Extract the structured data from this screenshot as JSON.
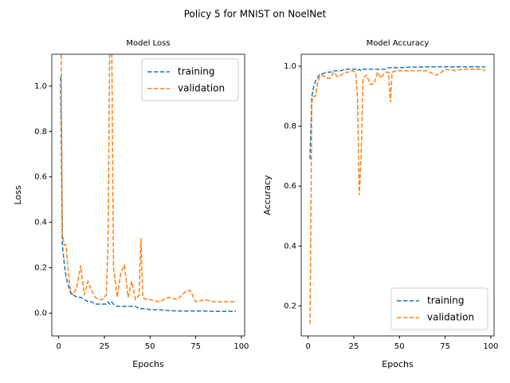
{
  "title": "Policy 5 for MNIST on NoelNet",
  "chart_data": [
    {
      "type": "line",
      "title": "Model Loss",
      "xlabel": "Epochs",
      "ylabel": "Loss",
      "x": [
        1,
        2,
        3,
        4,
        5,
        6,
        7,
        8,
        10,
        12,
        14,
        16,
        18,
        20,
        22,
        24,
        26,
        27,
        28,
        29,
        30,
        32,
        34,
        36,
        38,
        40,
        42,
        44,
        45,
        46,
        48,
        50,
        55,
        60,
        65,
        70,
        72,
        75,
        80,
        85,
        90,
        95,
        97
      ],
      "series": [
        {
          "name": "training",
          "color": "#1f77b4",
          "values": [
            1.04,
            0.3,
            0.22,
            0.16,
            0.13,
            0.1,
            0.08,
            0.08,
            0.07,
            0.07,
            0.06,
            0.05,
            0.05,
            0.04,
            0.04,
            0.04,
            0.04,
            0.05,
            0.04,
            0.05,
            0.04,
            0.03,
            0.03,
            0.03,
            0.03,
            0.03,
            0.03,
            0.02,
            0.02,
            0.02,
            0.02,
            0.015,
            0.015,
            0.012,
            0.01,
            0.01,
            0.01,
            0.01,
            0.01,
            0.008,
            0.008,
            0.008,
            0.008
          ]
        },
        {
          "name": "validation",
          "color": "#ff7f0e",
          "values": [
            1.5,
            0.35,
            0.3,
            0.3,
            0.2,
            0.12,
            0.09,
            0.08,
            0.12,
            0.21,
            0.08,
            0.14,
            0.1,
            0.07,
            0.06,
            0.06,
            0.08,
            0.3,
            1.3,
            1.2,
            0.2,
            0.07,
            0.18,
            0.21,
            0.07,
            0.14,
            0.06,
            0.08,
            0.33,
            0.07,
            0.06,
            0.06,
            0.05,
            0.07,
            0.06,
            0.1,
            0.1,
            0.05,
            0.06,
            0.05,
            0.05,
            0.05,
            0.05
          ]
        }
      ],
      "xlim": [
        -3.8,
        101.8
      ],
      "xticks": [
        0,
        25,
        50,
        75,
        100
      ],
      "ylim": [
        -0.1,
        1.14
      ],
      "yticks": [
        {
          "value": 0,
          "label": "0.0"
        },
        0.2,
        0.4,
        0.6,
        0.8,
        {
          "value": 1,
          "label": "1.0"
        }
      ],
      "legend": "upper right",
      "line_style": "dashed"
    },
    {
      "type": "line",
      "title": "Model Accuracy",
      "xlabel": "Epochs",
      "ylabel": "Accuracy",
      "x": [
        1,
        2,
        3,
        4,
        5,
        6,
        7,
        8,
        10,
        12,
        14,
        16,
        18,
        20,
        22,
        24,
        26,
        27,
        28,
        29,
        30,
        32,
        34,
        36,
        38,
        40,
        42,
        44,
        45,
        46,
        48,
        50,
        55,
        60,
        65,
        70,
        72,
        75,
        80,
        85,
        90,
        95,
        97
      ],
      "series": [
        {
          "name": "training",
          "color": "#1f77b4",
          "values": [
            0.69,
            0.9,
            0.93,
            0.95,
            0.96,
            0.97,
            0.975,
            0.975,
            0.98,
            0.98,
            0.985,
            0.985,
            0.985,
            0.99,
            0.99,
            0.99,
            0.99,
            0.985,
            0.99,
            0.985,
            0.99,
            0.99,
            0.99,
            0.99,
            0.99,
            0.99,
            0.99,
            0.995,
            0.995,
            0.995,
            0.995,
            0.995,
            0.997,
            0.997,
            0.998,
            0.998,
            0.998,
            0.998,
            0.998,
            0.998,
            0.998,
            0.998,
            0.998
          ]
        },
        {
          "name": "validation",
          "color": "#ff7f0e",
          "values": [
            0.14,
            0.88,
            0.9,
            0.9,
            0.94,
            0.96,
            0.97,
            0.97,
            0.96,
            0.96,
            0.98,
            0.965,
            0.97,
            0.98,
            0.98,
            0.985,
            0.98,
            0.9,
            0.57,
            0.7,
            0.96,
            0.97,
            0.94,
            0.94,
            0.98,
            0.96,
            0.98,
            0.98,
            0.88,
            0.98,
            0.985,
            0.985,
            0.985,
            0.985,
            0.985,
            0.97,
            0.975,
            0.99,
            0.985,
            0.99,
            0.99,
            0.99,
            0.985
          ]
        }
      ],
      "xlim": [
        -3.8,
        101.8
      ],
      "xticks": [
        0,
        25,
        50,
        75,
        100
      ],
      "ylim": [
        0.1,
        1.04
      ],
      "yticks": [
        0.2,
        0.4,
        0.6,
        0.8,
        {
          "value": 1,
          "label": "1.0"
        }
      ],
      "legend": "lower right",
      "line_style": "dashed"
    }
  ]
}
